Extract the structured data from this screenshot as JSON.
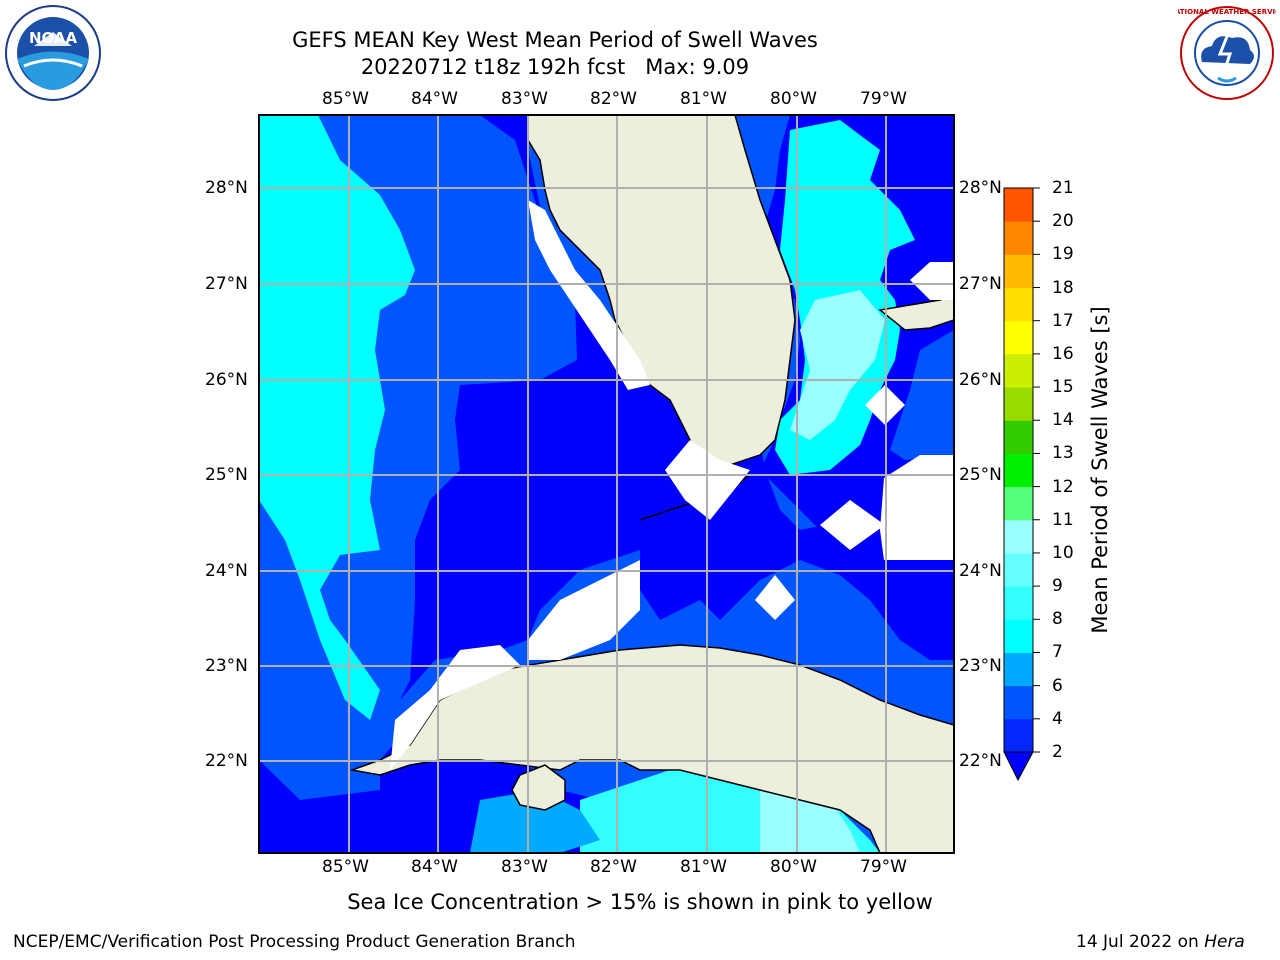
{
  "title_line1": "GEFS MEAN Key West Mean Period of Swell Waves",
  "title_line2": "20220712 t18z 192h fcst   Max: 9.09",
  "lon_labels": [
    "85°W",
    "84°W",
    "83°W",
    "82°W",
    "81°W",
    "80°W",
    "79°W"
  ],
  "lat_labels": [
    "28°N",
    "27°N",
    "26°N",
    "25°N",
    "24°N",
    "23°N",
    "22°N"
  ],
  "colorbar": {
    "label": "Mean Period of Swell Waves [s]",
    "ticks": [
      "2",
      "4",
      "6",
      "7",
      "8",
      "9",
      "10",
      "11",
      "12",
      "13",
      "14",
      "15",
      "16",
      "17",
      "18",
      "19",
      "20",
      "21"
    ],
    "colors": [
      "#0028ff",
      "#0055ff",
      "#00aaff",
      "#00ffff",
      "#33ffff",
      "#66ffff",
      "#99ffff",
      "#55ff77",
      "#00ee00",
      "#33cc00",
      "#99dd00",
      "#ccee00",
      "#ffff00",
      "#ffdd00",
      "#ffbb00",
      "#ff8800",
      "#ff5500",
      "#ff2200",
      "#ff0000"
    ],
    "under_color": "#0000ff"
  },
  "caption": "Sea Ice Concentration > 15% is shown in pink to yellow",
  "footer_left": "NCEP/EMC/Verification Post Processing Product Generation Branch",
  "footer_right_date": "14 Jul 2022 on ",
  "footer_right_host": "Hera",
  "logos": {
    "left": "NOAA",
    "right": "NATIONAL WEATHER SERVICE"
  }
}
